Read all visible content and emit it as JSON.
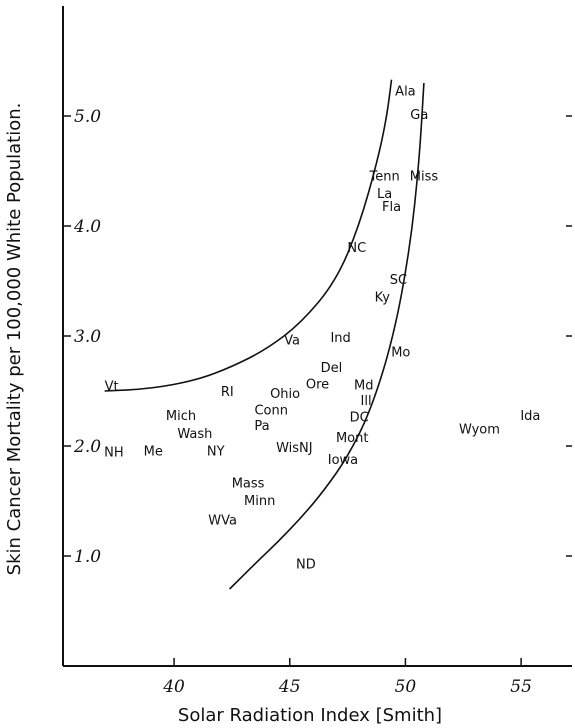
{
  "chart_data": {
    "type": "scatter",
    "title": "",
    "xlabel": "Solar Radiation Index [Smith]",
    "ylabel": "Skin Cancer Mortality per 100,000 White Population.",
    "xlim": [
      35.2,
      57.2
    ],
    "ylim": [
      0.0,
      6.0
    ],
    "xticks": [
      {
        "value": 40,
        "label": "40"
      },
      {
        "value": 45,
        "label": "45"
      },
      {
        "value": 50,
        "label": "50"
      },
      {
        "value": 55,
        "label": "55"
      }
    ],
    "yticks": [
      {
        "value": 1,
        "label": "1.0"
      },
      {
        "value": 2,
        "label": "2.0"
      },
      {
        "value": 3,
        "label": "3.0"
      },
      {
        "value": 4,
        "label": "4.0"
      },
      {
        "value": 5,
        "label": "5.0"
      }
    ],
    "grid": false,
    "legend": "none",
    "points": [
      {
        "label": "Ala",
        "x": 50.0,
        "y": 5.23
      },
      {
        "label": "Ga",
        "x": 50.6,
        "y": 5.02
      },
      {
        "label": "Tenn",
        "x": 49.1,
        "y": 4.46
      },
      {
        "label": "Miss",
        "x": 50.8,
        "y": 4.46
      },
      {
        "label": "La",
        "x": 49.1,
        "y": 4.3
      },
      {
        "label": "Fla",
        "x": 49.4,
        "y": 4.18
      },
      {
        "label": "NC",
        "x": 47.9,
        "y": 3.81
      },
      {
        "label": "SC",
        "x": 49.7,
        "y": 3.52
      },
      {
        "label": "Ky",
        "x": 49.0,
        "y": 3.36
      },
      {
        "label": "Va",
        "x": 45.1,
        "y": 2.97
      },
      {
        "label": "Ind",
        "x": 47.2,
        "y": 2.99
      },
      {
        "label": "Mo",
        "x": 49.8,
        "y": 2.86
      },
      {
        "label": "Del",
        "x": 46.8,
        "y": 2.72
      },
      {
        "label": "Ore",
        "x": 46.2,
        "y": 2.57
      },
      {
        "label": "Md",
        "x": 48.2,
        "y": 2.56
      },
      {
        "label": "Ohio",
        "x": 44.8,
        "y": 2.48
      },
      {
        "label": "Ill",
        "x": 48.3,
        "y": 2.42
      },
      {
        "label": "Vt",
        "x": 37.3,
        "y": 2.55
      },
      {
        "label": "RI",
        "x": 42.3,
        "y": 2.5
      },
      {
        "label": "Conn",
        "x": 44.2,
        "y": 2.33
      },
      {
        "label": "DC",
        "x": 48.0,
        "y": 2.27
      },
      {
        "label": "Pa",
        "x": 43.8,
        "y": 2.19
      },
      {
        "label": "Mont",
        "x": 47.7,
        "y": 2.08
      },
      {
        "label": "Mich",
        "x": 40.3,
        "y": 2.28
      },
      {
        "label": "Wash",
        "x": 40.9,
        "y": 2.12
      },
      {
        "label": "WisNJ",
        "x": 45.2,
        "y": 1.99
      },
      {
        "label": "Iowa",
        "x": 47.3,
        "y": 1.88
      },
      {
        "label": "NH",
        "x": 37.4,
        "y": 1.95
      },
      {
        "label": "Me",
        "x": 39.1,
        "y": 1.96
      },
      {
        "label": "NY",
        "x": 41.8,
        "y": 1.96
      },
      {
        "label": "Wyom",
        "x": 53.2,
        "y": 2.16
      },
      {
        "label": "Ida",
        "x": 55.4,
        "y": 2.28
      },
      {
        "label": "Mass",
        "x": 43.2,
        "y": 1.67
      },
      {
        "label": "Minn",
        "x": 43.7,
        "y": 1.51
      },
      {
        "label": "WVa",
        "x": 42.1,
        "y": 1.33
      },
      {
        "label": "ND",
        "x": 45.7,
        "y": 0.93
      }
    ],
    "curves": [
      {
        "name": "",
        "x": [
          37.0,
          39.0,
          41.0,
          42.5,
          44.0,
          45.5,
          47.0,
          48.0,
          48.8,
          49.2,
          49.4
        ],
        "y": [
          2.5,
          2.52,
          2.6,
          2.72,
          2.88,
          3.12,
          3.5,
          4.0,
          4.6,
          5.0,
          5.33
        ]
      },
      {
        "name": "",
        "x": [
          42.4,
          43.5,
          44.5,
          45.5,
          46.5,
          47.5,
          48.5,
          49.5,
          50.2,
          50.6,
          50.8
        ],
        "y": [
          0.7,
          0.93,
          1.13,
          1.35,
          1.6,
          1.9,
          2.32,
          3.0,
          3.8,
          4.6,
          5.3
        ]
      }
    ]
  }
}
